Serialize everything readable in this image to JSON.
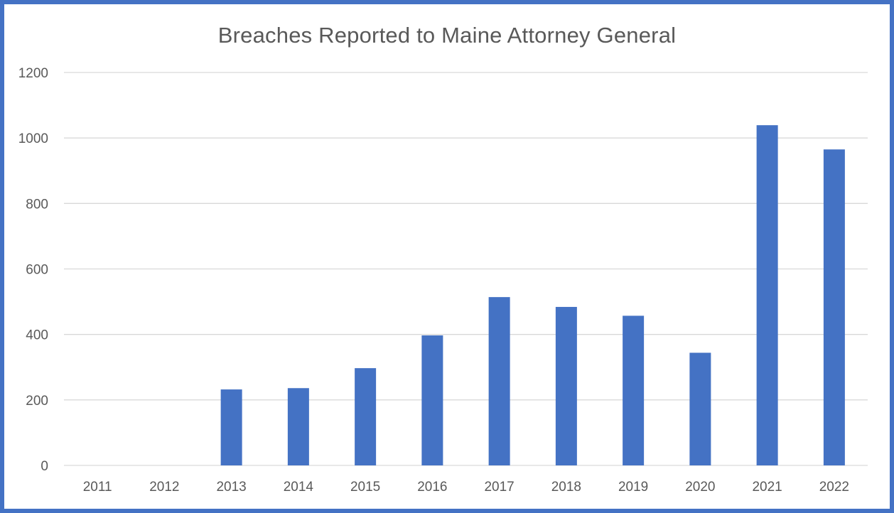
{
  "chart_data": {
    "type": "bar",
    "title": "Breaches Reported to Maine Attorney General",
    "xlabel": "",
    "ylabel": "",
    "categories": [
      "2011",
      "2012",
      "2013",
      "2014",
      "2015",
      "2016",
      "2017",
      "2018",
      "2019",
      "2020",
      "2021",
      "2022"
    ],
    "values": [
      0,
      0,
      232,
      236,
      297,
      397,
      514,
      484,
      457,
      344,
      1039,
      965
    ],
    "ylim": [
      0,
      1200
    ],
    "yticks": [
      "0",
      "200",
      "400",
      "600",
      "800",
      "1000",
      "1200"
    ],
    "grid": true,
    "legend": "none",
    "bar_color": "#4472c4",
    "grid_color": "#d9d9d9",
    "frame_color": "#4472c4"
  }
}
